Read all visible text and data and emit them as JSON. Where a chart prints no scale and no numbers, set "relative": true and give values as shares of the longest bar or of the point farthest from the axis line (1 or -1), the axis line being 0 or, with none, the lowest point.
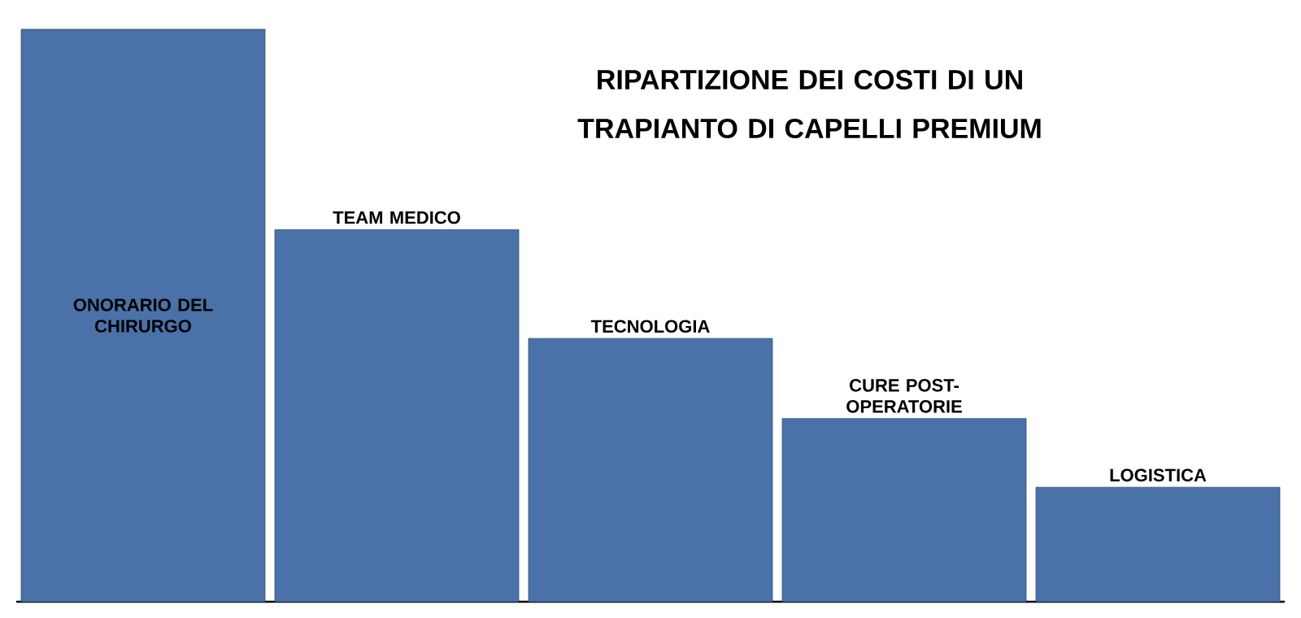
{
  "chart_data": {
    "type": "bar",
    "title": "RIPARTIZIONE DEI COSTI DI UN TRAPIANTO DI CAPELLI PREMIUM",
    "categories": [
      "ONORARIO DEL CHIRURGO",
      "TEAM MEDICO",
      "TECNOLOGIA",
      "CURE POST-OPERATORIE",
      "LOGISTICA"
    ],
    "values": [
      1,
      0.65,
      0.46,
      0.32,
      0.2
    ],
    "color": "#4a72a8",
    "relative": true
  }
}
